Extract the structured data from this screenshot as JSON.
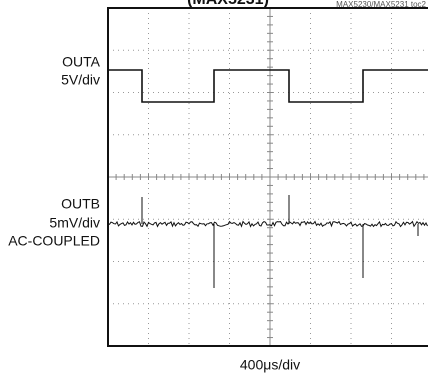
{
  "header": {
    "title": "(MAX5231)",
    "figure_id": "MAX5230/MAX5231 toc2"
  },
  "channels": [
    {
      "name": "OUTA",
      "scale": "5V/div"
    },
    {
      "name": "OUTB",
      "scale": "5mV/div",
      "coupling": "AC-COUPLED"
    }
  ],
  "time_scale": "400μs/div"
}
